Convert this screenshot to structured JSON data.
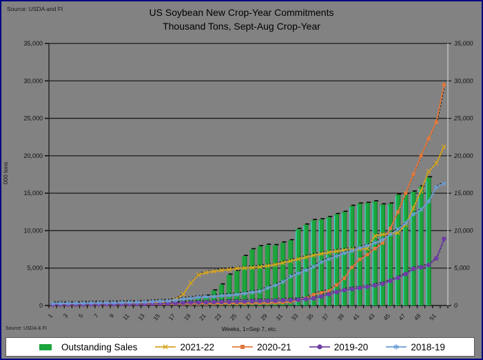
{
  "header": {
    "source": "Source: USDA and  FI",
    "title": "US Soybean New Crop-Year Commitments",
    "subtitle": "Thousand Tons, Sept-Aug Crop-Year"
  },
  "footer": {
    "source": "Source: USDA & FI"
  },
  "colors": {
    "background": "#828282",
    "page_border": "#000080",
    "gridline": "#1a1a1a",
    "bar_green": "#1CA53C",
    "bar_accent_cyan": "#2DE8DE",
    "series_2021_22": "#D6A51D",
    "series_2020_21": "#E2773B",
    "series_2019_20": "#6E3FA3",
    "series_2018_19": "#6D9ED6",
    "legend_bg": "#ffffff"
  },
  "chart_data": {
    "type": "bar",
    "combo": "bar+line",
    "title": "US Soybean New Crop-Year Commitments",
    "subtitle": "Thousand Tons, Sept-Aug Crop-Year",
    "xlabel": "Weeks, 1=Sep 7, etc.",
    "ylabel": "000 tons",
    "ylim": [
      0,
      35000
    ],
    "ytick_step": 5000,
    "ytick_labels": [
      "0",
      "5,000",
      "10,000",
      "15,000",
      "20,000",
      "25,000",
      "30,000",
      "35,000"
    ],
    "right_axis_mirror": true,
    "grid": true,
    "legend_position": "bottom",
    "x": [
      1,
      2,
      3,
      4,
      5,
      6,
      7,
      8,
      9,
      10,
      11,
      12,
      13,
      14,
      15,
      16,
      17,
      18,
      19,
      20,
      21,
      22,
      23,
      24,
      25,
      26,
      27,
      28,
      29,
      30,
      31,
      32,
      33,
      34,
      35,
      36,
      37,
      38,
      39,
      40,
      41,
      42,
      43,
      44,
      45,
      46,
      47,
      48,
      49,
      50,
      51,
      52
    ],
    "xtick_labels": [
      "1",
      "3",
      "5",
      "7",
      "9",
      "11",
      "13",
      "15",
      "17",
      "19",
      "21",
      "23",
      "25",
      "27",
      "29",
      "31",
      "33",
      "35",
      "37",
      "39",
      "41",
      "43",
      "45",
      "47",
      "49",
      "51"
    ],
    "bar_series": {
      "name": "Outstanding Sales",
      "color": "#1CA53C",
      "values": [
        0,
        0,
        0,
        0,
        0,
        0,
        0,
        0,
        0,
        0,
        0,
        0,
        0,
        0,
        0,
        0,
        300,
        800,
        950,
        1100,
        1300,
        2000,
        2800,
        4100,
        4600,
        6600,
        7500,
        7900,
        8100,
        8050,
        8400,
        8700,
        10200,
        10800,
        11400,
        11500,
        11800,
        12200,
        12500,
        13300,
        13600,
        13700,
        13900,
        13500,
        13600,
        14800,
        14900,
        15200,
        15900,
        17100,
        0,
        0
      ]
    },
    "line_series": [
      {
        "name": "2021-22",
        "color": "#D6A51D",
        "marker": "x",
        "values": [
          100,
          120,
          150,
          150,
          180,
          200,
          200,
          220,
          250,
          250,
          280,
          300,
          320,
          350,
          400,
          500,
          800,
          1500,
          3000,
          4100,
          4400,
          4550,
          4700,
          4800,
          4950,
          5000,
          5050,
          5150,
          5300,
          5450,
          5700,
          5950,
          6200,
          6450,
          6700,
          6900,
          7100,
          7250,
          7400,
          7500,
          7550,
          7600,
          9300,
          9500,
          9600,
          9700,
          10800,
          13000,
          15300,
          17900,
          19000,
          21200
        ]
      },
      {
        "name": "2020-21",
        "color": "#E2773B",
        "marker": "square",
        "values": [
          80,
          90,
          100,
          100,
          110,
          120,
          130,
          140,
          150,
          150,
          160,
          170,
          180,
          190,
          200,
          200,
          210,
          220,
          230,
          240,
          250,
          260,
          270,
          280,
          290,
          300,
          310,
          320,
          340,
          360,
          400,
          500,
          700,
          1000,
          1450,
          1700,
          1950,
          2750,
          3650,
          5100,
          6150,
          6800,
          7600,
          8350,
          10300,
          12500,
          15000,
          17500,
          20000,
          22300,
          24500,
          29500
        ]
      },
      {
        "name": "2019-20",
        "color": "#6E3FA3",
        "marker": "circle",
        "values": [
          100,
          110,
          120,
          130,
          140,
          150,
          160,
          170,
          180,
          190,
          200,
          210,
          220,
          240,
          260,
          280,
          300,
          350,
          380,
          400,
          420,
          450,
          470,
          500,
          520,
          550,
          580,
          600,
          620,
          650,
          700,
          720,
          770,
          850,
          950,
          1200,
          1500,
          1800,
          2050,
          2200,
          2350,
          2500,
          2700,
          2900,
          3300,
          3700,
          4200,
          4900,
          5100,
          5400,
          6300,
          8900
        ]
      },
      {
        "name": "2018-19",
        "color": "#6D9ED6",
        "marker": "star",
        "values": [
          250,
          270,
          280,
          300,
          300,
          320,
          330,
          350,
          350,
          380,
          400,
          420,
          450,
          500,
          550,
          600,
          700,
          850,
          950,
          1100,
          1150,
          1200,
          1300,
          1350,
          1450,
          1600,
          1750,
          1900,
          2350,
          2700,
          3150,
          3900,
          4300,
          4700,
          5200,
          5800,
          6200,
          6600,
          7000,
          7300,
          7700,
          8000,
          8400,
          8800,
          9500,
          10200,
          11000,
          12200,
          12800,
          13900,
          15800,
          16300
        ]
      }
    ]
  }
}
